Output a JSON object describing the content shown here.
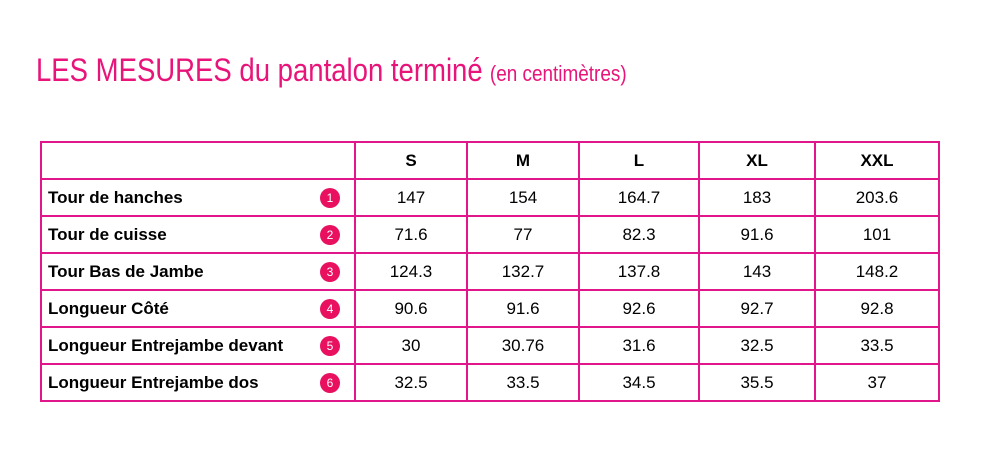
{
  "title": {
    "main": "LES MESURES du pantalon terminé",
    "unit": "(en centimètres)"
  },
  "table": {
    "headers": [
      "",
      "S",
      "M",
      "L",
      "XL",
      "XXL"
    ],
    "rows": [
      {
        "label": "Tour de hanches",
        "badge": "1",
        "values": [
          "147",
          "154",
          "164.7",
          "183",
          "203.6"
        ]
      },
      {
        "label": "Tour de cuisse",
        "badge": "2",
        "values": [
          "71.6",
          "77",
          "82.3",
          "91.6",
          "101"
        ]
      },
      {
        "label": "Tour Bas de Jambe",
        "badge": "3",
        "values": [
          "124.3",
          "132.7",
          "137.8",
          "143",
          "148.2"
        ]
      },
      {
        "label": "Longueur Côté",
        "badge": "4",
        "values": [
          "90.6",
          "91.6",
          "92.6",
          "92.7",
          "92.8"
        ]
      },
      {
        "label": "Longueur Entrejambe devant",
        "badge": "5",
        "values": [
          "30",
          "30.76",
          "31.6",
          "32.5",
          "33.5"
        ]
      },
      {
        "label": "Longueur Entrejambe dos",
        "badge": "6",
        "values": [
          "32.5",
          "33.5",
          "34.5",
          "35.5",
          "37"
        ]
      }
    ]
  },
  "colors": {
    "accent": "#e8147a",
    "border": "#e0168a",
    "badge": "#e8105f"
  }
}
